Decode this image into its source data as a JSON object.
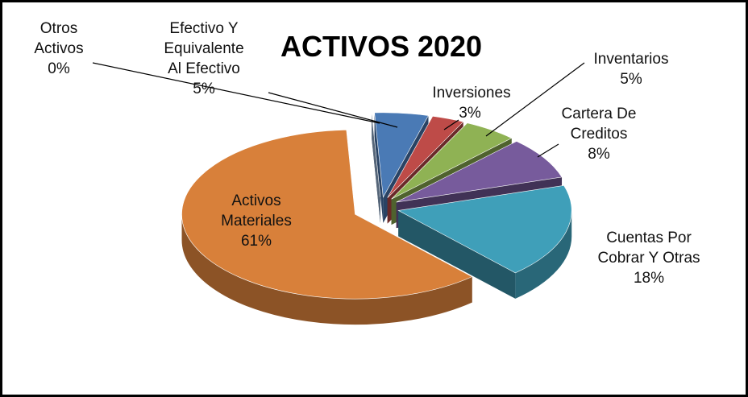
{
  "chart_data": {
    "type": "pie",
    "title": "ACTIVOS 2020",
    "categories": [
      "Otros Activos",
      "Efectivo Y Equivalente Al Efectivo",
      "Inversiones",
      "Inventarios",
      "Cartera De Creditos",
      "Cuentas Por Cobrar Y Otras",
      "Activos Materiales"
    ],
    "values": [
      0,
      5,
      3,
      5,
      8,
      18,
      61
    ],
    "value_labels": [
      "0%",
      "5%",
      "3%",
      "5%",
      "8%",
      "18%",
      "61%"
    ],
    "colors": [
      "#9db9dc",
      "#4a7ab5",
      "#be4b48",
      "#8fb254",
      "#775b9c",
      "#3f9fb9",
      "#d8803a"
    ]
  }
}
